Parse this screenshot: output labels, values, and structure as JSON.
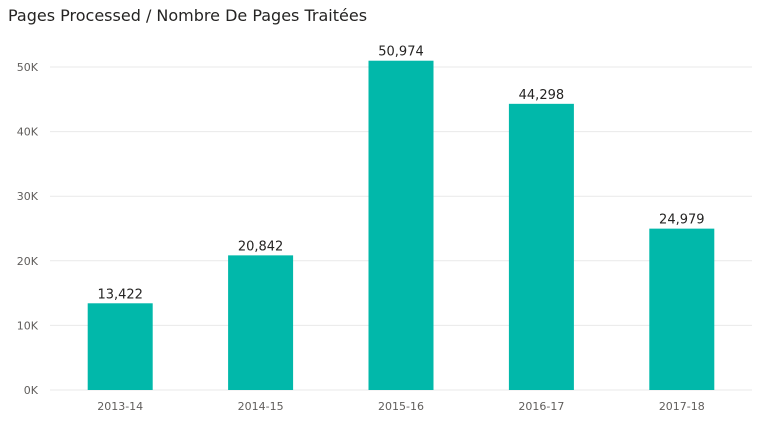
{
  "chart_data": {
    "type": "bar",
    "title": "Pages Processed / Nombre De Pages Traitées",
    "categories": [
      "2013-14",
      "2014-15",
      "2015-16",
      "2016-17",
      "2017-18"
    ],
    "values": [
      13422,
      20842,
      50974,
      44298,
      24979
    ],
    "value_labels": [
      "13,422",
      "20,842",
      "50,974",
      "44,298",
      "24,979"
    ],
    "ylim": [
      0,
      50000
    ],
    "yticks": [
      0,
      10000,
      20000,
      30000,
      40000,
      50000
    ],
    "ytick_labels": [
      "0K",
      "10K",
      "20K",
      "30K",
      "40K",
      "50K"
    ],
    "xlabel": "",
    "ylabel": "",
    "grid": true,
    "bar_color": "#01B8AA"
  }
}
